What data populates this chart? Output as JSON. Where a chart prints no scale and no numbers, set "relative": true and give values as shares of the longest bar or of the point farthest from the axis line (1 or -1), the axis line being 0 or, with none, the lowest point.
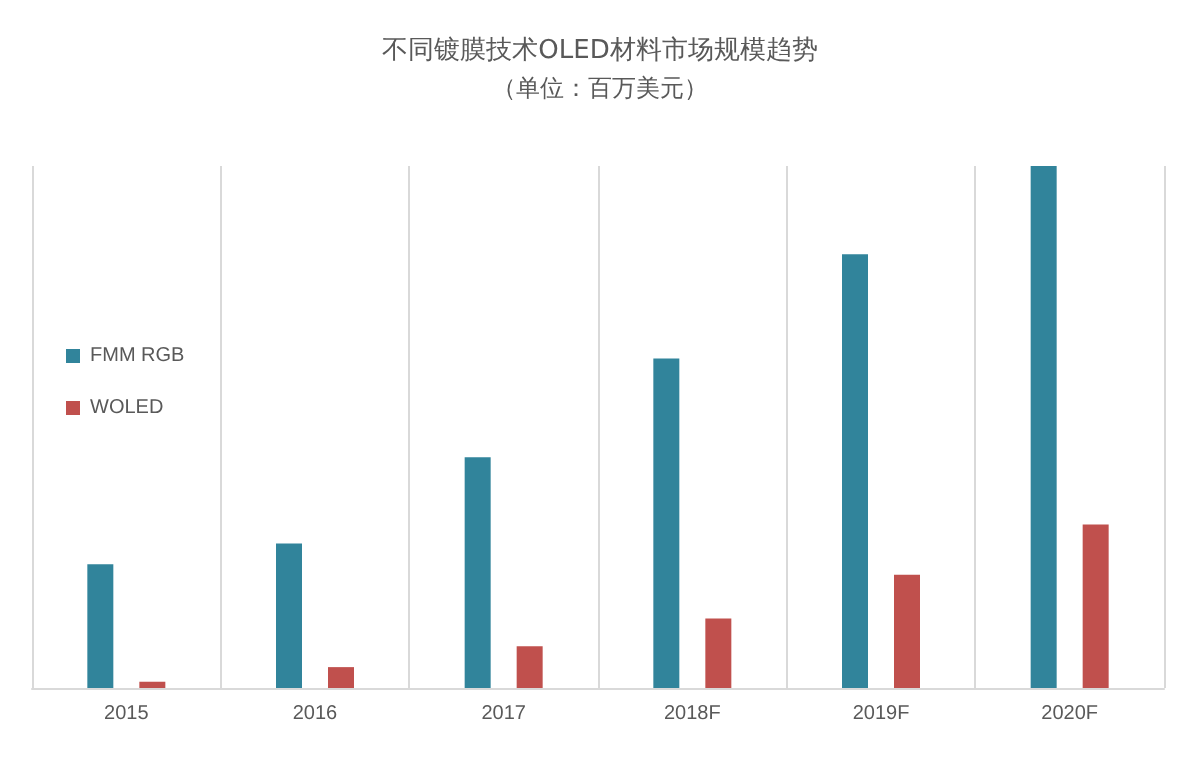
{
  "chart_data": {
    "type": "bar",
    "title": "不同镀膜技术OLED材料市场规模趋势",
    "subtitle": "（单位：百万美元）",
    "categories": [
      "2015",
      "2016",
      "2017",
      "2018F",
      "2019F",
      "2020F"
    ],
    "relative": true,
    "grid": "x",
    "legend": "left",
    "series": [
      {
        "name": "FMM RGB",
        "color": "#31849b",
        "values": [
          0.237,
          0.277,
          0.442,
          0.631,
          0.831,
          1
        ]
      },
      {
        "name": "WOLED",
        "color": "#c0504d",
        "values": [
          0.012,
          0.04,
          0.08,
          0.133,
          0.217,
          0.313
        ]
      }
    ]
  }
}
